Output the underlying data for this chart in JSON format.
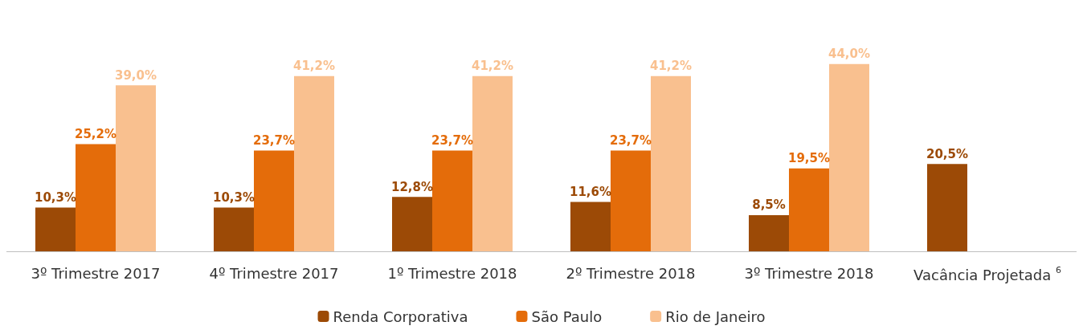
{
  "chart_data": {
    "type": "bar",
    "categories": [
      "3º Trimestre 2017",
      "4º Trimestre 2017",
      "1º Trimestre 2018",
      "2º Trimestre 2018",
      "3º Trimestre 2018",
      "Vacância Projetada $^{6}$"
    ],
    "series": [
      {
        "name": "Renda Corporativa",
        "color": "#9c4a06",
        "values": [
          10.3,
          10.3,
          12.8,
          11.6,
          8.5,
          20.5
        ],
        "value_labels": [
          "10,3%",
          "10,3%",
          "12,8%",
          "11,6%",
          "8,5%",
          "20,5%"
        ]
      },
      {
        "name": "São Paulo",
        "color": "#e46c0a",
        "values": [
          25.2,
          23.7,
          23.7,
          23.7,
          19.5,
          null
        ],
        "value_labels": [
          "25,2%",
          "23,7%",
          "23,7%",
          "23,7%",
          "19,5%",
          null
        ]
      },
      {
        "name": "Rio de Janeiro",
        "color": "#f9c08f",
        "values": [
          39.0,
          41.2,
          41.2,
          41.2,
          44.0,
          null
        ],
        "value_labels": [
          "39,0%",
          "41,2%",
          "41,2%",
          "41,2%",
          "44,0%",
          null
        ]
      }
    ],
    "legend": "bottom"
  }
}
